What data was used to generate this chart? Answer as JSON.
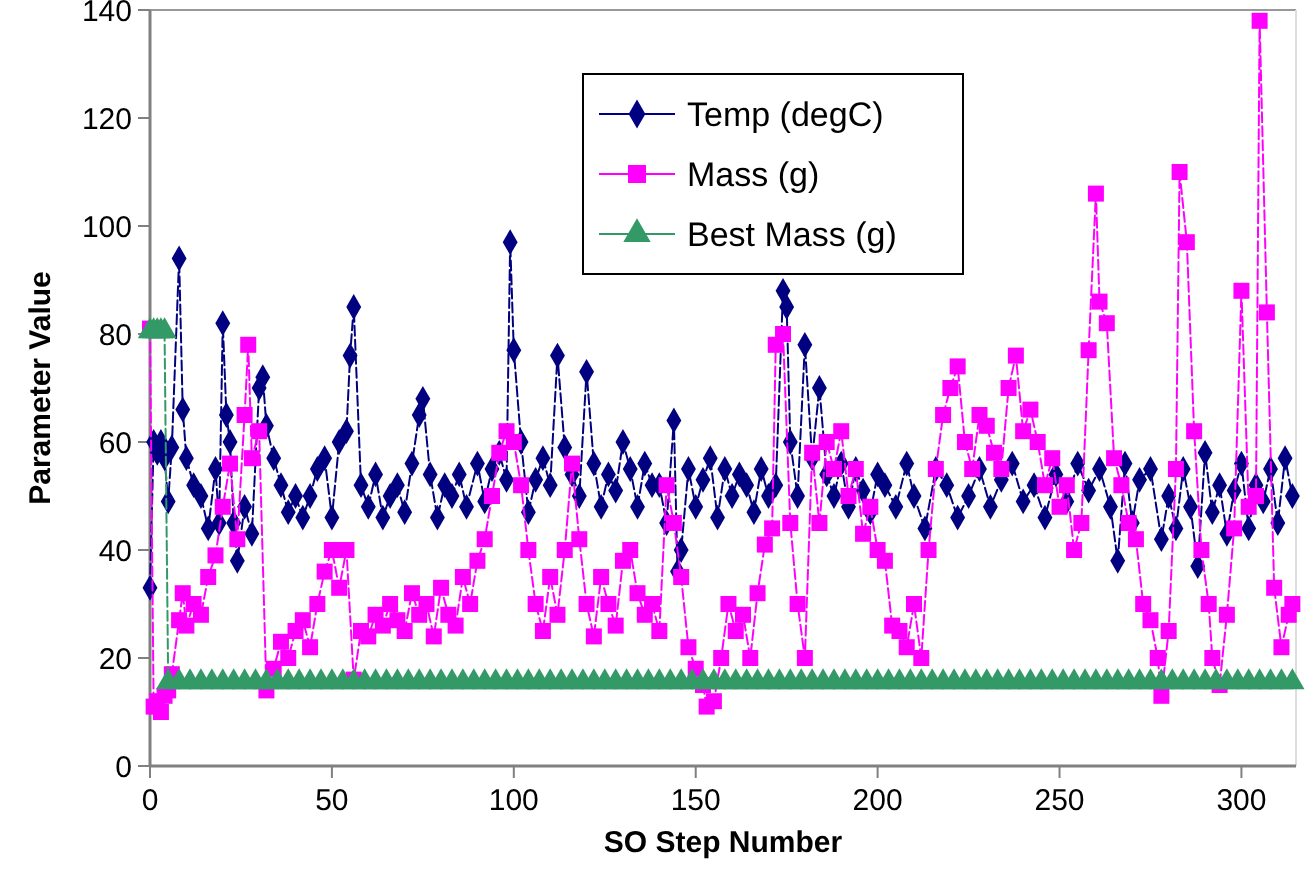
{
  "chart_data": {
    "type": "line",
    "xlabel": "SO Step Number",
    "ylabel": "Parameter Value",
    "xlim": [
      0,
      315
    ],
    "xticks": [
      0,
      50,
      100,
      150,
      200,
      250,
      300
    ],
    "ylim": [
      0,
      140
    ],
    "yticks": [
      0,
      20,
      40,
      60,
      80,
      100,
      120,
      140
    ],
    "grid": false,
    "legend": "top",
    "line_style": "dashed",
    "series": [
      {
        "name": "Temp (degC)",
        "color": "#000080",
        "marker": "diamond",
        "x": [
          0,
          1,
          2,
          3,
          4,
          5,
          6,
          8,
          9,
          10,
          12,
          14,
          16,
          18,
          19,
          20,
          21,
          22,
          23,
          24,
          26,
          28,
          30,
          31,
          32,
          34,
          36,
          38,
          40,
          42,
          44,
          46,
          48,
          50,
          52,
          54,
          55,
          56,
          58,
          60,
          62,
          64,
          66,
          68,
          70,
          72,
          74,
          75,
          77,
          79,
          81,
          83,
          85,
          87,
          90,
          92,
          94,
          96,
          98,
          99,
          100,
          102,
          104,
          106,
          108,
          110,
          112,
          114,
          116,
          118,
          120,
          122,
          124,
          126,
          128,
          130,
          132,
          134,
          136,
          138,
          140,
          142,
          144,
          145,
          146,
          148,
          150,
          152,
          154,
          156,
          158,
          160,
          162,
          164,
          166,
          168,
          170,
          172,
          174,
          175,
          176,
          178,
          180,
          182,
          184,
          186,
          188,
          190,
          192,
          194,
          196,
          198,
          200,
          202,
          205,
          208,
          210,
          213,
          216,
          219,
          222,
          225,
          228,
          231,
          234,
          237,
          240,
          243,
          246,
          249,
          252,
          255,
          258,
          261,
          264,
          266,
          268,
          270,
          272,
          275,
          278,
          280,
          282,
          284,
          286,
          288,
          290,
          292,
          294,
          296,
          298,
          300,
          302,
          304,
          306,
          308,
          310,
          312,
          314
        ],
        "values": [
          33,
          60,
          58,
          60,
          57,
          49,
          59,
          94,
          66,
          57,
          52,
          50,
          44,
          55,
          45,
          82,
          65,
          60,
          45,
          38,
          48,
          43,
          70,
          72,
          63,
          57,
          52,
          47,
          50,
          46,
          50,
          55,
          57,
          46,
          60,
          62,
          76,
          85,
          52,
          48,
          54,
          46,
          50,
          52,
          47,
          56,
          65,
          68,
          54,
          46,
          52,
          50,
          54,
          48,
          56,
          49,
          55,
          58,
          53,
          97,
          77,
          60,
          47,
          53,
          57,
          52,
          76,
          59,
          54,
          50,
          73,
          56,
          48,
          54,
          51,
          60,
          55,
          48,
          56,
          52,
          52,
          45,
          64,
          36,
          40,
          55,
          48,
          53,
          57,
          46,
          55,
          50,
          54,
          52,
          47,
          55,
          50,
          52,
          88,
          85,
          60,
          50,
          78,
          57,
          70,
          54,
          50,
          56,
          48,
          55,
          51,
          47,
          54,
          52,
          48,
          56,
          50,
          44,
          55,
          52,
          46,
          50,
          55,
          48,
          53,
          56,
          49,
          52,
          46,
          54,
          49,
          56,
          51,
          55,
          48,
          38,
          56,
          45,
          53,
          55,
          42,
          50,
          44,
          55,
          48,
          37,
          58,
          47,
          52,
          43,
          51,
          56,
          44,
          52,
          49,
          55,
          45,
          57,
          50
        ]
      },
      {
        "name": "Mass (g)",
        "color": "#ff00ff",
        "marker": "square",
        "x": [
          0,
          1,
          2,
          3,
          4,
          5,
          6,
          8,
          9,
          10,
          12,
          14,
          16,
          18,
          20,
          22,
          24,
          26,
          27,
          28,
          30,
          32,
          34,
          36,
          38,
          40,
          42,
          44,
          46,
          48,
          50,
          52,
          54,
          56,
          58,
          60,
          62,
          64,
          66,
          68,
          70,
          72,
          74,
          76,
          78,
          80,
          82,
          84,
          86,
          88,
          90,
          92,
          94,
          96,
          98,
          100,
          102,
          104,
          106,
          108,
          110,
          112,
          114,
          116,
          118,
          120,
          122,
          124,
          126,
          128,
          130,
          132,
          134,
          136,
          138,
          140,
          142,
          144,
          146,
          148,
          150,
          152,
          153,
          155,
          157,
          159,
          161,
          163,
          165,
          167,
          169,
          171,
          172,
          174,
          176,
          178,
          180,
          182,
          184,
          186,
          188,
          190,
          192,
          194,
          196,
          198,
          200,
          202,
          204,
          206,
          208,
          210,
          212,
          214,
          216,
          218,
          220,
          222,
          224,
          226,
          228,
          230,
          232,
          234,
          236,
          238,
          240,
          242,
          244,
          246,
          248,
          250,
          252,
          254,
          256,
          258,
          260,
          261,
          263,
          265,
          267,
          269,
          271,
          273,
          275,
          277,
          278,
          280,
          282,
          283,
          285,
          287,
          289,
          291,
          292,
          294,
          296,
          298,
          300,
          302,
          304,
          305,
          307,
          309,
          311,
          313,
          314
        ],
        "values": [
          81,
          11,
          12,
          10,
          13,
          14,
          17,
          27,
          32,
          26,
          30,
          28,
          35,
          39,
          48,
          56,
          42,
          65,
          78,
          57,
          62,
          14,
          18,
          23,
          20,
          25,
          27,
          22,
          30,
          36,
          40,
          33,
          40,
          16,
          25,
          24,
          28,
          26,
          30,
          27,
          25,
          32,
          28,
          30,
          24,
          33,
          28,
          26,
          35,
          30,
          38,
          42,
          50,
          58,
          62,
          60,
          52,
          40,
          30,
          25,
          35,
          28,
          40,
          56,
          42,
          30,
          24,
          35,
          30,
          26,
          38,
          40,
          32,
          28,
          30,
          25,
          52,
          45,
          35,
          22,
          18,
          15,
          11,
          12,
          20,
          30,
          25,
          28,
          20,
          32,
          41,
          44,
          78,
          80,
          45,
          30,
          20,
          58,
          45,
          60,
          55,
          62,
          50,
          55,
          43,
          48,
          40,
          38,
          26,
          25,
          22,
          30,
          20,
          40,
          55,
          65,
          70,
          74,
          60,
          55,
          65,
          63,
          58,
          55,
          70,
          76,
          62,
          66,
          60,
          52,
          57,
          48,
          52,
          40,
          45,
          77,
          106,
          86,
          82,
          57,
          52,
          45,
          42,
          30,
          27,
          20,
          13,
          25,
          55,
          110,
          97,
          62,
          40,
          30,
          20,
          15,
          28,
          44,
          88,
          48,
          50,
          138,
          84,
          33,
          22,
          28,
          30
        ]
      },
      {
        "name": "Best Mass (g)",
        "color": "#339966",
        "marker": "triangle",
        "x": [
          0,
          1,
          2,
          3,
          4,
          5,
          8,
          11,
          14,
          17,
          20,
          23,
          26,
          29,
          32,
          35,
          38,
          41,
          44,
          47,
          50,
          53,
          56,
          59,
          62,
          65,
          68,
          71,
          74,
          77,
          80,
          83,
          86,
          89,
          92,
          95,
          98,
          101,
          104,
          107,
          110,
          113,
          116,
          119,
          122,
          125,
          128,
          131,
          134,
          137,
          140,
          143,
          146,
          149,
          152,
          155,
          158,
          161,
          164,
          167,
          170,
          173,
          176,
          179,
          182,
          185,
          188,
          191,
          194,
          197,
          200,
          203,
          206,
          209,
          212,
          215,
          218,
          221,
          224,
          227,
          230,
          233,
          236,
          239,
          242,
          245,
          248,
          251,
          254,
          257,
          260,
          263,
          266,
          269,
          272,
          275,
          278,
          281,
          284,
          287,
          290,
          293,
          296,
          299,
          302,
          305,
          308,
          311,
          314
        ],
        "values": [
          80.5,
          80.5,
          80.5,
          80.5,
          80.5,
          15.5,
          15.5,
          15.5,
          15.5,
          15.5,
          15.5,
          15.5,
          15.5,
          15.5,
          15.5,
          15.5,
          15.5,
          15.5,
          15.5,
          15.5,
          15.5,
          15.5,
          15.5,
          15.5,
          15.5,
          15.5,
          15.5,
          15.5,
          15.5,
          15.5,
          15.5,
          15.5,
          15.5,
          15.5,
          15.5,
          15.5,
          15.5,
          15.5,
          15.5,
          15.5,
          15.5,
          15.5,
          15.5,
          15.5,
          15.5,
          15.5,
          15.5,
          15.5,
          15.5,
          15.5,
          15.5,
          15.5,
          15.5,
          15.5,
          15.5,
          15.5,
          15.5,
          15.5,
          15.5,
          15.5,
          15.5,
          15.5,
          15.5,
          15.5,
          15.5,
          15.5,
          15.5,
          15.5,
          15.5,
          15.5,
          15.5,
          15.5,
          15.5,
          15.5,
          15.5,
          15.5,
          15.5,
          15.5,
          15.5,
          15.5,
          15.5,
          15.5,
          15.5,
          15.5,
          15.5,
          15.5,
          15.5,
          15.5,
          15.5,
          15.5,
          15.5,
          15.5,
          15.5,
          15.5,
          15.5,
          15.5,
          15.5,
          15.5,
          15.5,
          15.5,
          15.5,
          15.5,
          15.5,
          15.5,
          15.5,
          15.5,
          15.5,
          15.5,
          15.5
        ]
      }
    ]
  }
}
